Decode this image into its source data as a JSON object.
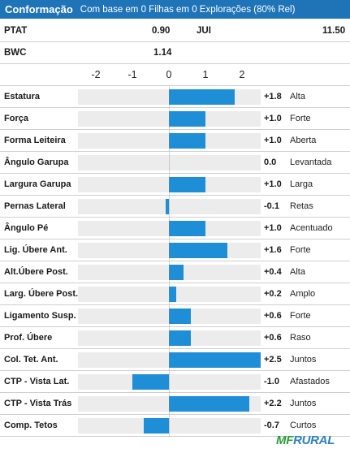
{
  "header": {
    "title": "Conformação",
    "subtitle": "Com base em 0 Filhas em 0 Explorações (80% Rel)"
  },
  "info": {
    "ptat_label": "PTAT",
    "ptat_value": "0.90",
    "jui_label": "JUI",
    "jui_value": "11.50",
    "bwc_label": "BWC",
    "bwc_value": "1.14"
  },
  "chart_data": {
    "type": "bar",
    "orientation": "horizontal",
    "xlim": [
      -2.5,
      2.5
    ],
    "ticks": [
      -2,
      -1,
      0,
      1,
      2
    ],
    "tick_labels": [
      "-2",
      "-1",
      "0",
      "1",
      "2"
    ],
    "grid": false,
    "categories": [
      "Estatura",
      "Força",
      "Forma Leiteira",
      "Ângulo Garupa",
      "Largura Garupa",
      "Pernas Lateral",
      "Ângulo Pé",
      "Lig. Úbere Ant.",
      "Alt.Úbere Post.",
      "Larg. Úbere Post.",
      "Ligamento Susp.",
      "Prof. Úbere",
      "Col. Tet. Ant.",
      "CTP - Vista Lat.",
      "CTP - Vista Trás",
      "Comp. Tetos"
    ],
    "values": [
      1.8,
      1.0,
      1.0,
      0.0,
      1.0,
      -0.1,
      1.0,
      1.6,
      0.4,
      0.2,
      0.6,
      0.6,
      2.5,
      -1.0,
      2.2,
      -0.7
    ],
    "value_labels": [
      "+1.8",
      "+1.0",
      "+1.0",
      "0.0",
      "+1.0",
      "-0.1",
      "+1.0",
      "+1.6",
      "+0.4",
      "+0.2",
      "+0.6",
      "+0.6",
      "+2.5",
      "-1.0",
      "+2.2",
      "-0.7"
    ],
    "descriptors": [
      "Alta",
      "Forte",
      "Aberta",
      "Levantada",
      "Larga",
      "Retas",
      "Acentuado",
      "Forte",
      "Alta",
      "Amplo",
      "Forte",
      "Raso",
      "Juntos",
      "Afastados",
      "Juntos",
      "Curtos"
    ],
    "bar_color": "#1e8fd6",
    "track_color": "#ececec"
  },
  "logo": {
    "part1": "MF",
    "part2": "RURAL"
  }
}
